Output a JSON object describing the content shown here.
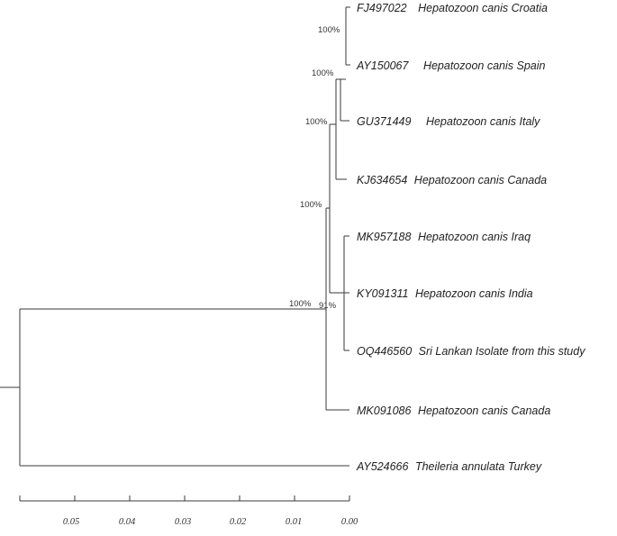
{
  "tree": {
    "leaves": [
      {
        "accession": "FJ497022",
        "name": "Hepatozoon canis Croatia"
      },
      {
        "accession": "AY150067",
        "name": "Hepatozoon canis Spain"
      },
      {
        "accession": "GU371449",
        "name": "Hepatozoon canis Italy"
      },
      {
        "accession": "KJ634654",
        "name": "Hepatozoon canis Canada"
      },
      {
        "accession": "MK957188",
        "name": "Hepatozoon canis Iraq"
      },
      {
        "accession": "KY091311",
        "name": "Hepatozoon canis India"
      },
      {
        "accession": "OQ446560",
        "name": "Sri Lankan Isolate from this study"
      },
      {
        "accession": "MK091086",
        "name": "Hepatozoon canis Canada"
      },
      {
        "accession": "AY524666",
        "name": "Theileria annulata Turkey"
      }
    ],
    "support_values": [
      "100%",
      "100%",
      "100%",
      "100%",
      "100%",
      "91%"
    ],
    "scale_axis": {
      "tick_labels": [
        "0.05",
        "0.04",
        "0.03",
        "0.02",
        "0.01",
        "0.00"
      ]
    }
  }
}
